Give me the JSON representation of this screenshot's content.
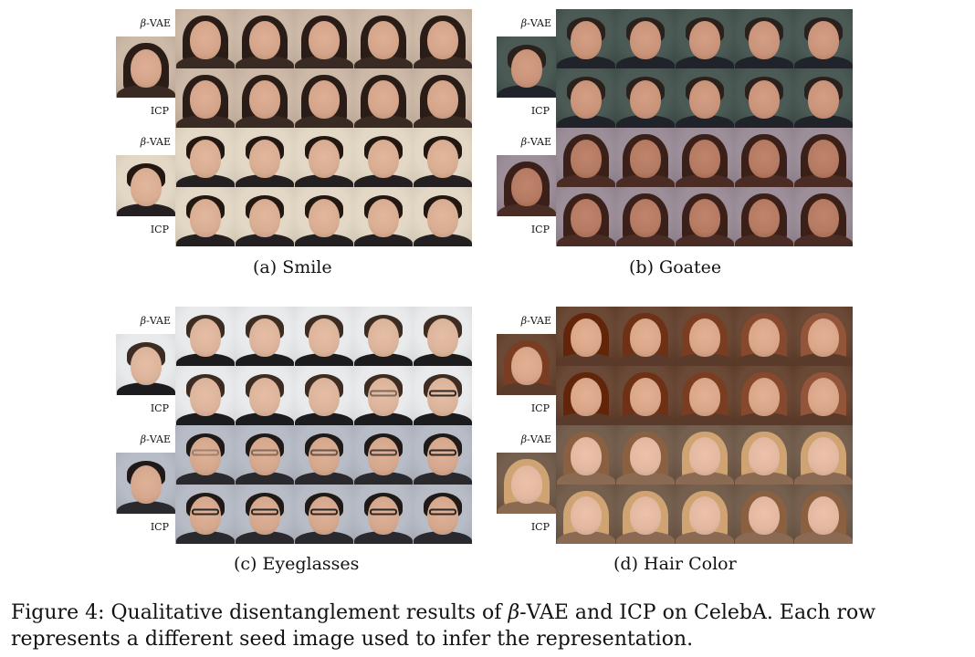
{
  "row_labels": {
    "beta_symbol": "β",
    "beta_suffix": "-VAE",
    "icp": "ICP"
  },
  "panels": [
    {
      "caption": "(a)  Smile",
      "styles": [
        "dark-curly-woman",
        "dark-man"
      ]
    },
    {
      "caption": "(b)  Goatee",
      "styles": [
        "suit-man",
        "dark-long-woman"
      ]
    },
    {
      "caption": "(c)  Eyeglasses",
      "styles": [
        "light-man",
        "glasses-man"
      ]
    },
    {
      "caption": "(d)  Hair Color",
      "styles": [
        "auburn-woman",
        "blonde-woman"
      ]
    }
  ],
  "figure_caption": {
    "prefix": "Figure 4:  Qualitative disentanglement results of ",
    "beta": "β",
    "suffix": "-VAE and ICP on CelebA. Each row represents a different seed image used to infer the representation."
  },
  "palettes": {
    "dark-curly-woman": {
      "bg": "#cdb9a7",
      "skin": "#d4a58a",
      "hair": "#2a1c16",
      "body": "#3a2a24"
    },
    "dark-man": {
      "bg": "#e3d8c6",
      "skin": "#d9ad92",
      "hair": "#221811",
      "body": "#242021"
    },
    "suit-man": {
      "bg": "#4b5a55",
      "skin": "#c99479",
      "hair": "#2a211d",
      "body": "#20232a"
    },
    "dark-long-woman": {
      "bg": "#9d8f99",
      "skin": "#b57a62",
      "hair": "#3a2019",
      "body": "#4a2c24"
    },
    "light-man": {
      "bg": "#e9eaec",
      "skin": "#dcb49b",
      "hair": "#3d2c22",
      "body": "#1c1c1e"
    },
    "glasses-man": {
      "bg": "#b7bcc6",
      "skin": "#d5a88e",
      "hair": "#1f1a17",
      "body": "#2a2a2e"
    },
    "auburn-woman": {
      "bg": "#6a4a36",
      "skin": "#d9a68a",
      "hair": "#7a3d22",
      "body": "#5a3a2a"
    },
    "blonde-woman": {
      "bg": "#75604f",
      "skin": "#e3b8a0",
      "hair": "#cfa372",
      "body": "#8a6a52"
    }
  }
}
